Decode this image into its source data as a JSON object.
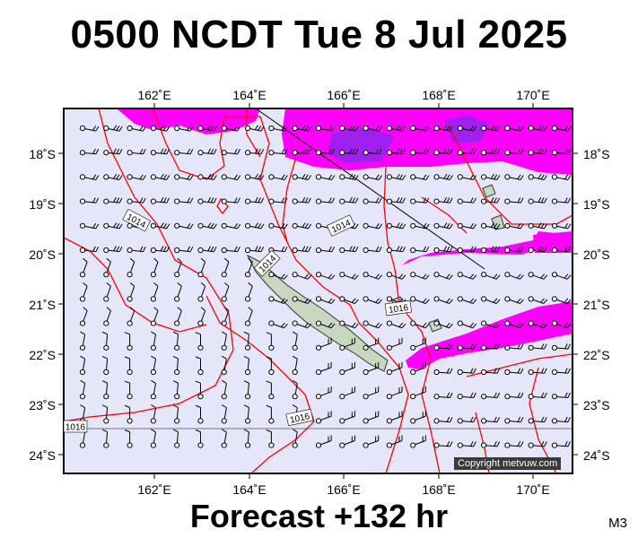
{
  "header": {
    "title": "0500 NCDT Tue 8 Jul 2025"
  },
  "footer": {
    "forecast": "Forecast +132 hr",
    "model": "M3"
  },
  "copyright": "Copyright metvuw.com",
  "map": {
    "lon_range": [
      160.2,
      171.0
    ],
    "lat_range": [
      -24.4,
      -17.2
    ],
    "lon_ticks": [
      "162˚E",
      "164˚E",
      "166˚E",
      "168˚E",
      "170˚E"
    ],
    "lat_ticks": [
      "18˚S",
      "19˚S",
      "20˚S",
      "21˚S",
      "22˚S",
      "23˚S",
      "24˚S"
    ],
    "isobar_labels": [
      "1014",
      "1014",
      "1014",
      "1016",
      "1016",
      "1016"
    ],
    "colors": {
      "ocean": "#e6e6fa",
      "isobar": "#ff0000",
      "rain": "#ff00ff",
      "rain_heavy": "#a020f0",
      "land": "#c8d8c0"
    }
  }
}
